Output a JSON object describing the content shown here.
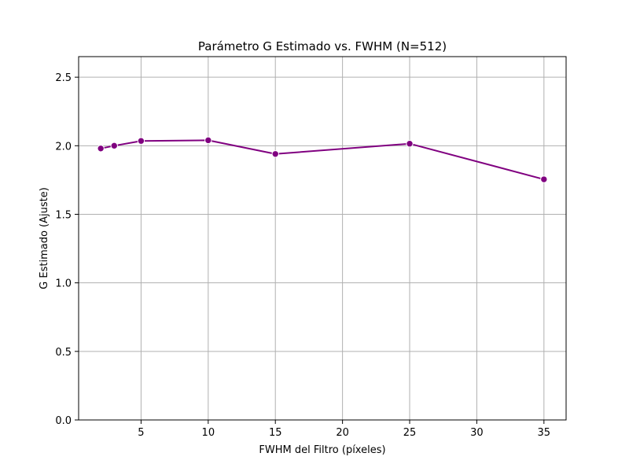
{
  "chart_data": {
    "type": "line",
    "title": "Parámetro G Estimado vs. FWHM (N=512)",
    "xlabel": "FWHM del Filtro (píxeles)",
    "ylabel": "G Estimado (Ajuste)",
    "xlim": [
      0.35,
      36.65
    ],
    "ylim": [
      0.0,
      2.65
    ],
    "xticks": [
      5,
      10,
      15,
      20,
      25,
      30,
      35
    ],
    "yticks": [
      0.0,
      0.5,
      1.0,
      1.5,
      2.0,
      2.5
    ],
    "xtick_labels": [
      "5",
      "10",
      "15",
      "20",
      "25",
      "30",
      "35"
    ],
    "ytick_labels": [
      "0.0",
      "0.5",
      "1.0",
      "1.5",
      "2.0",
      "2.5"
    ],
    "grid": true,
    "series": [
      {
        "name": "G Estimado",
        "color": "#800080",
        "x": [
          2,
          3,
          5,
          10,
          15,
          25,
          35
        ],
        "y": [
          1.98,
          2.0,
          2.035,
          2.04,
          1.94,
          2.015,
          1.755
        ]
      }
    ]
  }
}
